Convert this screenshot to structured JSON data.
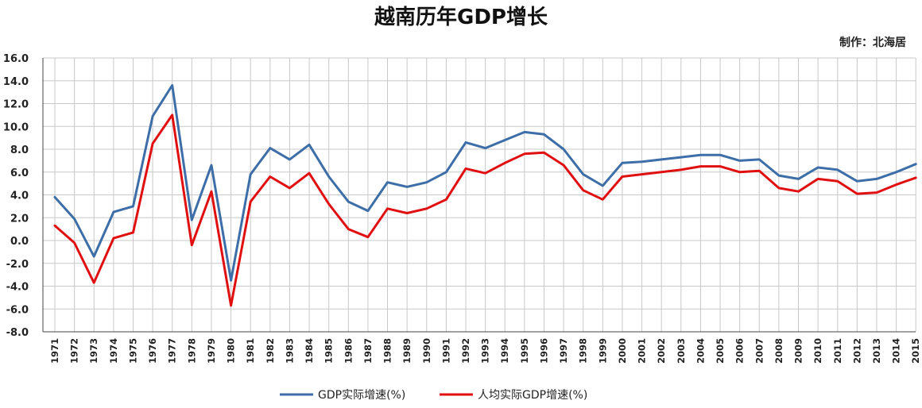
{
  "chart_data": {
    "type": "line",
    "title": "越南历年GDP增长",
    "credit": "制作：北海居",
    "x": [
      1971,
      1972,
      1973,
      1974,
      1975,
      1976,
      1977,
      1978,
      1979,
      1980,
      1981,
      1982,
      1983,
      1984,
      1985,
      1986,
      1987,
      1988,
      1989,
      1990,
      1991,
      1992,
      1993,
      1994,
      1995,
      1996,
      1997,
      1998,
      1999,
      2000,
      2001,
      2002,
      2003,
      2004,
      2005,
      2006,
      2007,
      2008,
      2009,
      2010,
      2011,
      2012,
      2013,
      2014,
      2015
    ],
    "ylim": [
      -8,
      16
    ],
    "ytick_labels": [
      "16.0",
      "14.0",
      "12.0",
      "10.0",
      "8.0",
      "6.0",
      "4.0",
      "2.0",
      "0.0",
      "-2.0",
      "-4.0",
      "-6.0",
      "-8.0"
    ],
    "grid": true,
    "legend_position": "bottom",
    "series": [
      {
        "name": "GDP实际增速(%)",
        "color": "#3d6ea8",
        "values": [
          3.8,
          1.9,
          -1.4,
          2.5,
          3.0,
          10.9,
          13.6,
          1.8,
          6.6,
          -3.5,
          5.8,
          8.1,
          7.1,
          8.4,
          5.6,
          3.4,
          2.6,
          5.1,
          4.7,
          5.1,
          6.0,
          8.6,
          8.1,
          8.8,
          9.5,
          9.3,
          8.0,
          5.8,
          4.8,
          6.8,
          6.9,
          7.1,
          7.3,
          7.5,
          7.5,
          7.0,
          7.1,
          5.7,
          5.4,
          6.4,
          6.2,
          5.2,
          5.4,
          6.0,
          6.7
        ]
      },
      {
        "name": "人均实际GDP增速(%)",
        "color": "#e01010",
        "values": [
          1.3,
          -0.2,
          -3.7,
          0.2,
          0.7,
          8.5,
          11.0,
          -0.4,
          4.3,
          -5.7,
          3.4,
          5.6,
          4.6,
          5.9,
          3.2,
          1.0,
          0.3,
          2.8,
          2.4,
          2.8,
          3.6,
          6.3,
          5.9,
          6.8,
          7.6,
          7.7,
          6.6,
          4.4,
          3.6,
          5.6,
          5.8,
          6.0,
          6.2,
          6.5,
          6.5,
          6.0,
          6.1,
          4.6,
          4.3,
          5.4,
          5.2,
          4.1,
          4.2,
          4.9,
          5.5
        ]
      }
    ]
  }
}
